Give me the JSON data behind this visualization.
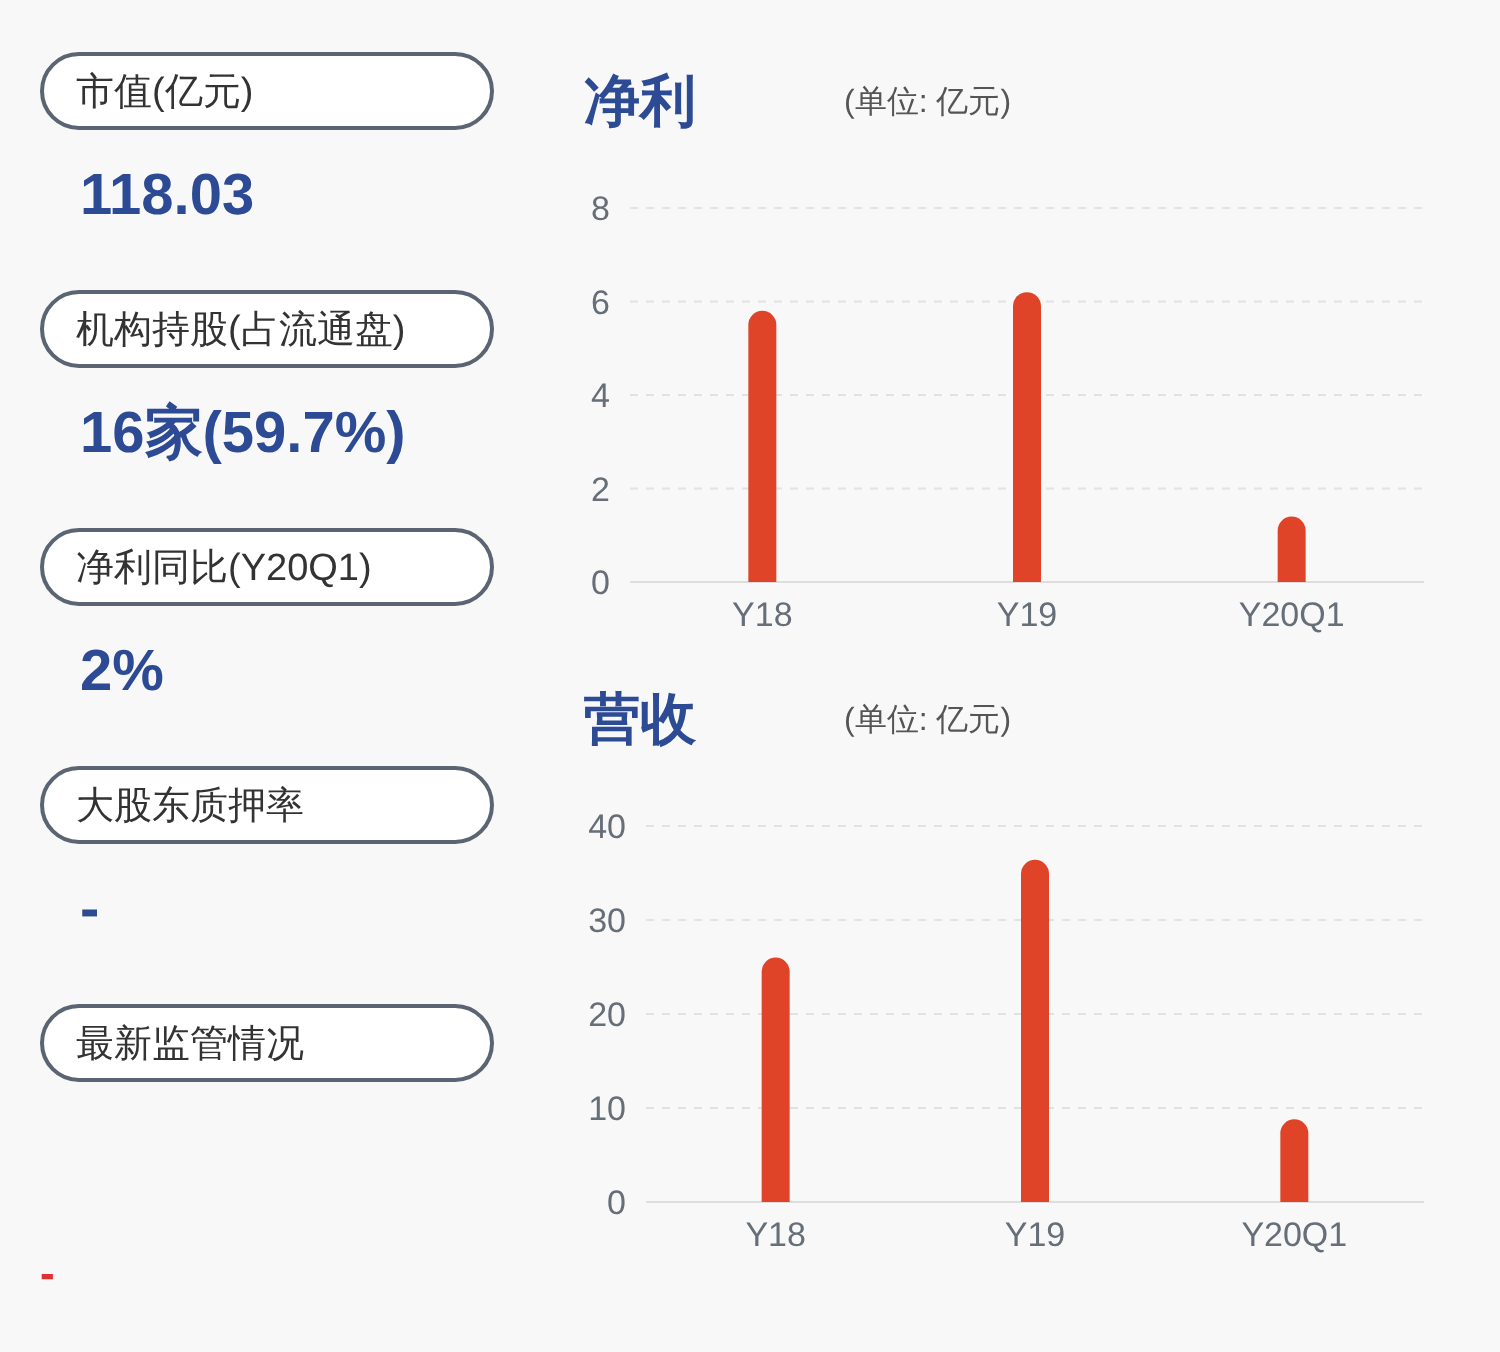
{
  "chart_data": [
    {
      "type": "other",
      "annotations": [
        "市值(亿元)",
        "118.03",
        "机构持股(占流通盘)",
        "16家(59.7%)",
        "净利同比(Y20Q1)",
        "2%",
        "大股东质押率",
        "-",
        "最新监管情况",
        "-"
      ]
    },
    {
      "type": "bar",
      "title": "净利",
      "subtitle": "(单位: 亿元)",
      "categories": [
        "Y18",
        "Y19",
        "Y20Q1"
      ],
      "values": [
        5.8,
        6.2,
        1.4
      ],
      "color": "#df4428",
      "ylim": [
        0,
        8
      ],
      "yticks": [
        0,
        2,
        4,
        6,
        8
      ],
      "grid": "y"
    },
    {
      "type": "bar",
      "title": "营收",
      "subtitle": "(单位: 亿元)",
      "categories": [
        "Y18",
        "Y19",
        "Y20Q1"
      ],
      "values": [
        26,
        36.4,
        8.8
      ],
      "color": "#df4428",
      "ylim": [
        0,
        40
      ],
      "yticks": [
        0,
        10,
        20,
        30,
        40
      ],
      "grid": "y"
    }
  ]
}
